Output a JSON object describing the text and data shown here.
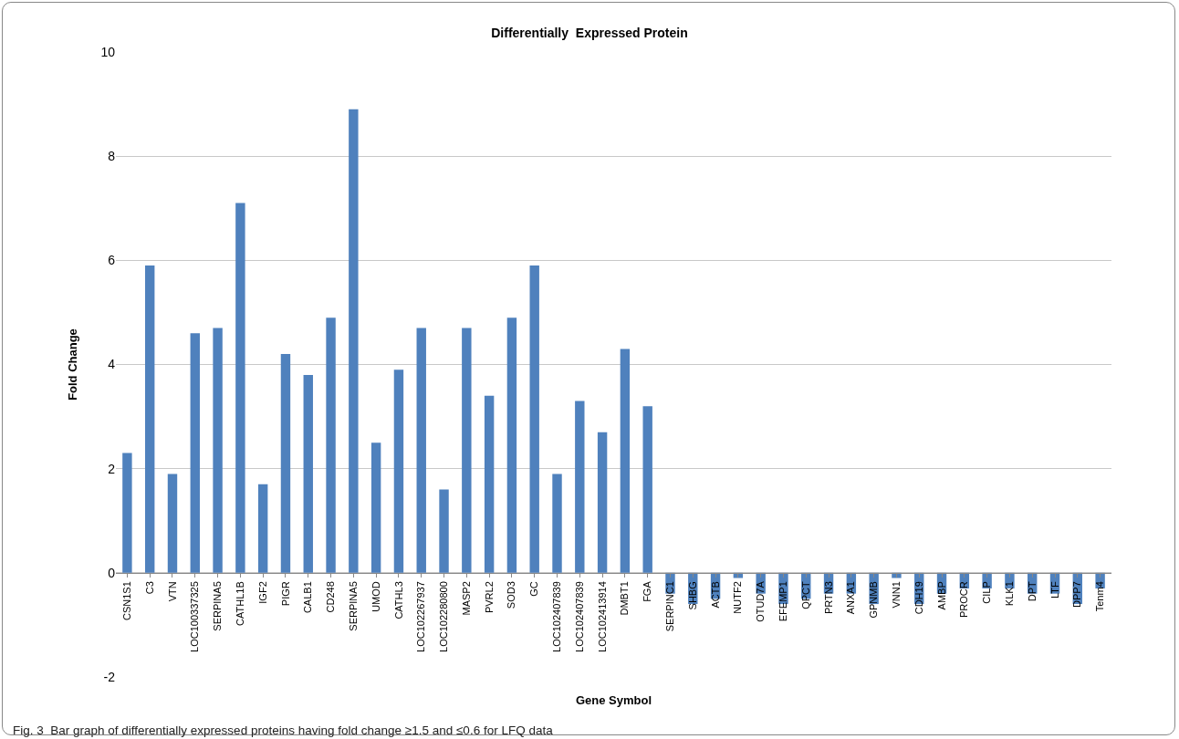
{
  "chart_data": {
    "type": "bar",
    "title": "Differentially  Expressed Protein",
    "xlabel": "Gene Symbol",
    "ylabel": "Fold Change",
    "categories": [
      "CSN1S1",
      "C3",
      "VTN",
      "LOC100337325",
      "SERPINA5",
      "CATHL1B",
      "IGF2",
      "PIGR",
      "CALB1",
      "CD248",
      "SERPINA5",
      "UMOD",
      "CATHL3",
      "LOC102267937",
      "LOC102280800",
      "MASP2",
      "PVRL2",
      "SOD3",
      "GC",
      "LOC102407839",
      "LOC102407839",
      "LOC102413914",
      "DMBT1",
      "FGA",
      "SERPINC1",
      "SHBG",
      "ACTB",
      "NUTF2",
      "OTUD7A",
      "EFEMP1",
      "QPCT",
      "PRTN3",
      "ANXA1",
      "GPNMB",
      "VNN1",
      "CDH19",
      "AMBP",
      "PROCR",
      "CILP",
      "KLK1",
      "DPT",
      "LTF",
      "DPP7",
      "Tenm4"
    ],
    "values": [
      2.3,
      5.9,
      1.9,
      4.6,
      4.7,
      7.1,
      1.7,
      4.2,
      3.8,
      4.9,
      8.9,
      2.5,
      3.9,
      4.7,
      1.6,
      4.7,
      3.4,
      4.9,
      5.9,
      1.9,
      3.3,
      2.7,
      4.3,
      3.2,
      -0.4,
      -0.6,
      -0.5,
      -0.1,
      -0.4,
      -0.6,
      -0.5,
      -0.4,
      -0.4,
      -0.6,
      -0.1,
      -0.6,
      -0.4,
      -0.3,
      -0.3,
      -0.3,
      -0.4,
      -0.4,
      -0.6,
      -0.3
    ],
    "color": "#4f81bd",
    "ylim": [
      -2,
      10
    ],
    "yticks": [
      -2,
      0,
      2,
      4,
      6,
      8,
      10
    ],
    "grid": "y",
    "annotations": [
      "Fig. 3  Bar graph of differentially expressed proteins having fold change ≥1.5 and ≤0.6 for LFQ data"
    ]
  }
}
